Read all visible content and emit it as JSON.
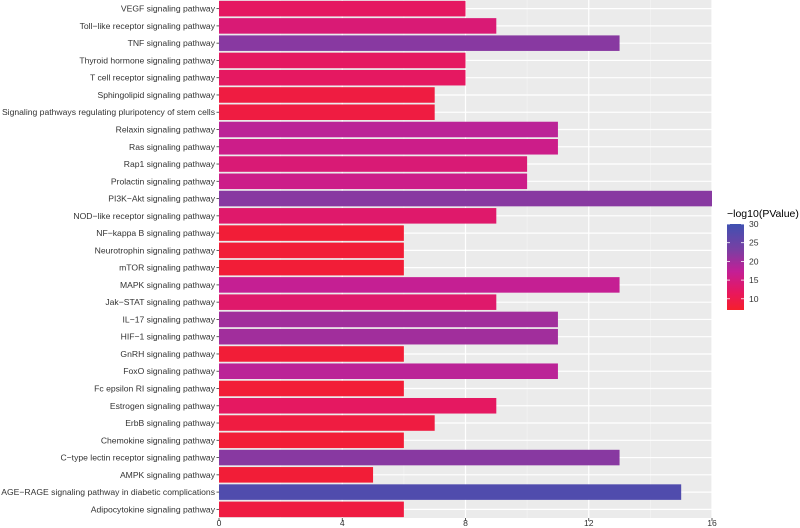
{
  "chart_data": {
    "type": "bar",
    "orientation": "horizontal",
    "categories": [
      "VEGF signaling pathway",
      "Toll−like receptor signaling pathway",
      "TNF signaling pathway",
      "Thyroid hormone signaling pathway",
      "T cell receptor signaling pathway",
      "Sphingolipid signaling pathway",
      "Signaling pathways regulating pluripotency of stem cells",
      "Relaxin signaling pathway",
      "Ras signaling pathway",
      "Rap1 signaling pathway",
      "Prolactin signaling pathway",
      "PI3K−Akt signaling pathway",
      "NOD−like receptor signaling pathway",
      "NF−kappa B signaling pathway",
      "Neurotrophin signaling pathway",
      "mTOR signaling pathway",
      "MAPK signaling pathway",
      "Jak−STAT signaling pathway",
      "IL−17 signaling pathway",
      "HIF−1 signaling pathway",
      "GnRH signaling pathway",
      "FoxO signaling pathway",
      "Fc epsilon RI signaling pathway",
      "Estrogen signaling pathway",
      "ErbB signaling pathway",
      "Chemokine signaling pathway",
      "C−type lectin receptor signaling pathway",
      "AMPK signaling pathway",
      "AGE−RAGE signaling pathway in diabetic complications",
      "Adipocytokine signaling pathway"
    ],
    "values": [
      8,
      9,
      13,
      8,
      8,
      7,
      7,
      11,
      11,
      10,
      10,
      16,
      9,
      6,
      6,
      6,
      13,
      9,
      11,
      11,
      6,
      11,
      6,
      9,
      7,
      6,
      13,
      5,
      15,
      6
    ],
    "color_values": [
      12,
      14,
      22,
      12,
      12,
      9,
      9,
      18,
      16,
      14,
      16,
      22,
      13,
      8,
      8,
      8,
      17,
      13,
      20,
      20,
      8,
      18,
      8,
      12,
      9,
      8,
      22,
      8,
      28,
      9
    ],
    "xlim": [
      0,
      16
    ],
    "x_ticks": [
      "0",
      "4",
      "8",
      "12",
      "16"
    ],
    "grid": true,
    "legend": {
      "title": "−log10(PValue)",
      "placement": "right",
      "ticks": [
        "30",
        "25",
        "20",
        "15",
        "10"
      ],
      "tick_values": [
        30,
        25,
        20,
        15,
        10
      ],
      "range": [
        7,
        30
      ],
      "colors": [
        "#3f51b1",
        "#7a3fa3",
        "#c31f96",
        "#e8175d",
        "#f51f2c"
      ]
    }
  }
}
